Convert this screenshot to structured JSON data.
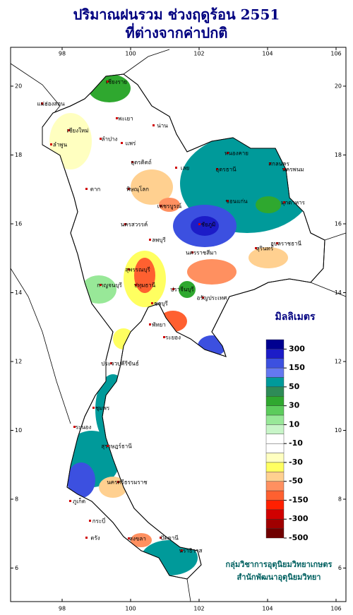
{
  "header": {
    "title": "ปริมาณฝนรวม ช่วงฤดูร้อน 2551",
    "subtitle": "ที่ต่างจากค่าปกติ"
  },
  "map": {
    "lon_ticks": [
      98,
      100,
      102,
      104,
      106
    ],
    "lat_ticks": [
      6,
      8,
      10,
      12,
      14,
      16,
      18,
      20
    ],
    "places": [
      "เชียงราย",
      "แม่ฮ่องสอน",
      "เชียงใหม่",
      "พะเยา",
      "ลำปาง",
      "น่าน",
      "ลำพูน",
      "แพร่",
      "อุตรดิตถ์",
      "ตาก",
      "พิษณุโลก",
      "เพชรบูรณ์",
      "เลย",
      "หนองคาย",
      "อุดรธานี",
      "สกลนคร",
      "นครพนม",
      "ขอนแก่น",
      "มุกดาหาร",
      "ชัยภูมิ",
      "นครสวรรค์",
      "ลพบุรี",
      "นครราชสีมา",
      "สุรินทร์",
      "อุบลราชธานี",
      "กาญจนบุรี",
      "สุพรรณบุรี",
      "ปทุมธานี",
      "ปราจีนบุรี",
      "อรัญประเทศ",
      "ชลบุรี",
      "พัทยา",
      "ระยอง",
      "ประจวบคีรีขันธ์",
      "ชุมพร",
      "ระนอง",
      "สุราษฎร์ธานี",
      "นครศรีธรรมราช",
      "ภูเก็ต",
      "กระบี่",
      "ตรัง",
      "สงขลา",
      "ปัตตานี",
      "นราธิวาส"
    ]
  },
  "legend": {
    "unit": "มิลลิเมตร",
    "labels": [
      300,
      150,
      50,
      30,
      10,
      -10,
      -30,
      -50,
      -150,
      -300,
      -500
    ],
    "colors": [
      "#000090",
      "#1c1cc8",
      "#3c50e0",
      "#6478f0",
      "#009a9a",
      "#2e8b57",
      "#2fa82f",
      "#5ccc5c",
      "#98e898",
      "#c8f5c8",
      "#ffffff",
      "#ffffff",
      "#ffffc0",
      "#ffff60",
      "#ffd090",
      "#ff9060",
      "#ff6030",
      "#ff2000",
      "#d00000",
      "#a00000",
      "#700000"
    ]
  },
  "credits": [
    "กลุ่มวิชาการอุตุนิยมวิทยาเกษตร",
    "สำนักพัฒนาอุตุนิยมวิทยา"
  ]
}
